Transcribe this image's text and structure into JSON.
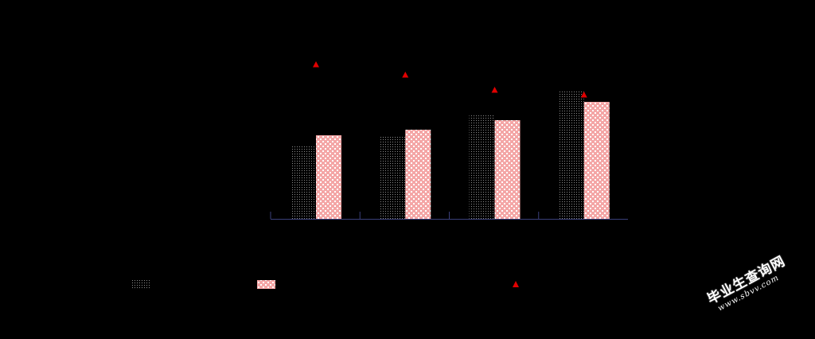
{
  "chart_data": {
    "type": "bar",
    "categories": [
      "",
      "",
      "",
      ""
    ],
    "series": [
      {
        "legend_key": "dotted",
        "values": [
          93,
          105,
          130,
          162
        ]
      },
      {
        "legend_key": "pink-checker",
        "values": [
          105,
          112,
          124,
          147
        ]
      },
      {
        "legend_key": "red-triangle-marker",
        "values": [
          194,
          181,
          162,
          156
        ]
      }
    ],
    "ylim": [
      0,
      210
    ],
    "grid": false,
    "legend_position": "bottom",
    "colors": {
      "axis": "#3a3f7a",
      "dotted_series": "#8c8c8c",
      "checker_series": "#f4a6a6",
      "checker_pattern": "#ffffff",
      "marker": "#e00000"
    }
  },
  "watermark": {
    "chinese": "毕业生查询网",
    "url": "www.sbvv.com"
  }
}
